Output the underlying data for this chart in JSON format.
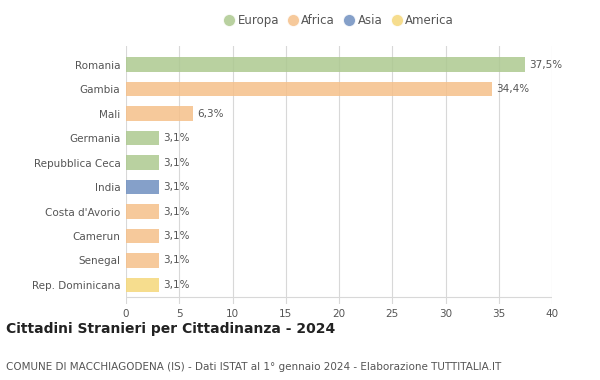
{
  "categories": [
    "Romania",
    "Gambia",
    "Mali",
    "Germania",
    "Repubblica Ceca",
    "India",
    "Costa d'Avorio",
    "Camerun",
    "Senegal",
    "Rep. Dominicana"
  ],
  "values": [
    37.5,
    34.4,
    6.3,
    3.1,
    3.1,
    3.1,
    3.1,
    3.1,
    3.1,
    3.1
  ],
  "labels": [
    "37,5%",
    "34,4%",
    "6,3%",
    "3,1%",
    "3,1%",
    "3,1%",
    "3,1%",
    "3,1%",
    "3,1%",
    "3,1%"
  ],
  "colors": [
    "#adc990",
    "#f5c08a",
    "#f5c08a",
    "#adc990",
    "#adc990",
    "#7090c0",
    "#f5c08a",
    "#f5c08a",
    "#f5c08a",
    "#f5d87a"
  ],
  "legend_labels": [
    "Europa",
    "Africa",
    "Asia",
    "America"
  ],
  "legend_colors": [
    "#adc990",
    "#f5c08a",
    "#7090c0",
    "#f5d87a"
  ],
  "xlim": [
    0,
    40
  ],
  "xticks": [
    0,
    5,
    10,
    15,
    20,
    25,
    30,
    35,
    40
  ],
  "title": "Cittadini Stranieri per Cittadinanza - 2024",
  "subtitle": "COMUNE DI MACCHIAGODENA (IS) - Dati ISTAT al 1° gennaio 2024 - Elaborazione TUTTITALIA.IT",
  "background_color": "#ffffff",
  "grid_color": "#d8d8d8",
  "bar_height": 0.6,
  "title_fontsize": 10,
  "subtitle_fontsize": 7.5,
  "label_fontsize": 7.5,
  "tick_fontsize": 7.5,
  "legend_fontsize": 8.5
}
